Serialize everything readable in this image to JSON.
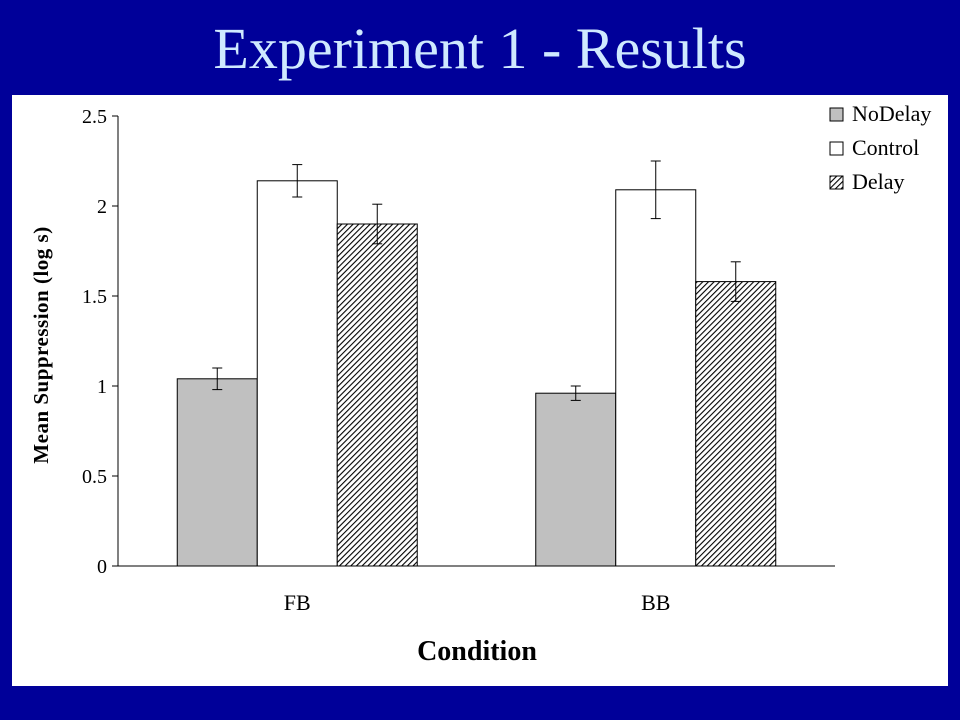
{
  "slide": {
    "title": "Experiment 1 - Results",
    "background": "#000099",
    "title_color": "#cfe9ff"
  },
  "chart_data": {
    "type": "bar",
    "title": "",
    "xlabel": "Condition",
    "ylabel": "Mean Suppression (log s)",
    "ylim": [
      0,
      2.5
    ],
    "yticks": [
      0,
      0.5,
      1,
      1.5,
      2,
      2.5
    ],
    "ytick_labels": [
      "0",
      "0.5",
      "1",
      "1.5",
      "2",
      "2.5"
    ],
    "categories": [
      "FB",
      "BB"
    ],
    "series": [
      {
        "name": "NoDelay",
        "fill": "solid-gray",
        "color": "#c0c0c0",
        "values": [
          1.04,
          0.96
        ],
        "errors": [
          0.06,
          0.04
        ]
      },
      {
        "name": "Control",
        "fill": "white",
        "color": "#ffffff",
        "values": [
          2.14,
          2.09
        ],
        "errors": [
          0.09,
          0.16
        ]
      },
      {
        "name": "Delay",
        "fill": "hatched",
        "color": "#808080",
        "values": [
          1.9,
          1.58
        ],
        "errors": [
          0.11,
          0.11
        ]
      }
    ],
    "legend_position": "top-right",
    "grid": false,
    "error_bars": true
  }
}
